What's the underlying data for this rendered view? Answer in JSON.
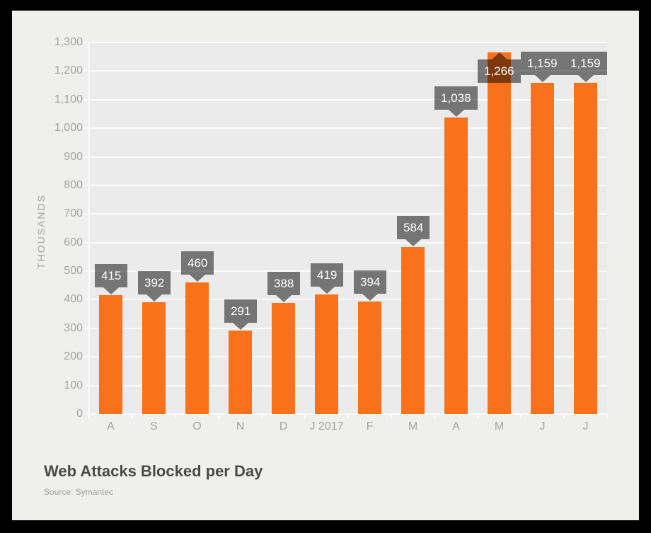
{
  "window": {
    "frame_color": "#000000"
  },
  "chart_data": {
    "type": "bar",
    "title": "Web Attacks Blocked per Day",
    "source": "Source: Symantec",
    "ylabel": "THOUSANDS",
    "xlabel": "",
    "categories": [
      "A",
      "S",
      "O",
      "N",
      "D",
      "J 2017",
      "F",
      "M",
      "A",
      "M",
      "J",
      "J"
    ],
    "values": [
      415,
      392,
      460,
      291,
      388,
      419,
      394,
      584,
      1038,
      1266,
      1159,
      1159
    ],
    "value_labels": [
      "415",
      "392",
      "460",
      "291",
      "388",
      "419",
      "394",
      "584",
      "1,038",
      "1,266",
      "1,159",
      "1,159"
    ],
    "callout_pointers": [
      "down",
      "down",
      "down",
      "down",
      "down",
      "down",
      "down",
      "down",
      "down",
      "up",
      "down",
      "down"
    ],
    "ylim": [
      0,
      1300
    ],
    "ytick_values": [
      0,
      100,
      200,
      300,
      400,
      500,
      600,
      700,
      800,
      900,
      1000,
      1100,
      1200,
      1300
    ],
    "ytick_labels": [
      "0",
      "100",
      "200",
      "300",
      "400",
      "500",
      "600",
      "700",
      "800",
      "900",
      "1,000",
      "1,100",
      "1,200",
      "1,300"
    ],
    "grid": true,
    "legend": "none",
    "colors": {
      "frame": "#000000",
      "background": "#efefee",
      "plot_background": "#ebebeb",
      "grid": "#fcfcfc",
      "bar": "#fa711c",
      "callout": "#7f7f7f",
      "callout_text": "#ffffff",
      "axis_text": "#a4a4a4",
      "title": "#4a4a4a",
      "source": "#9e9e9e"
    }
  }
}
